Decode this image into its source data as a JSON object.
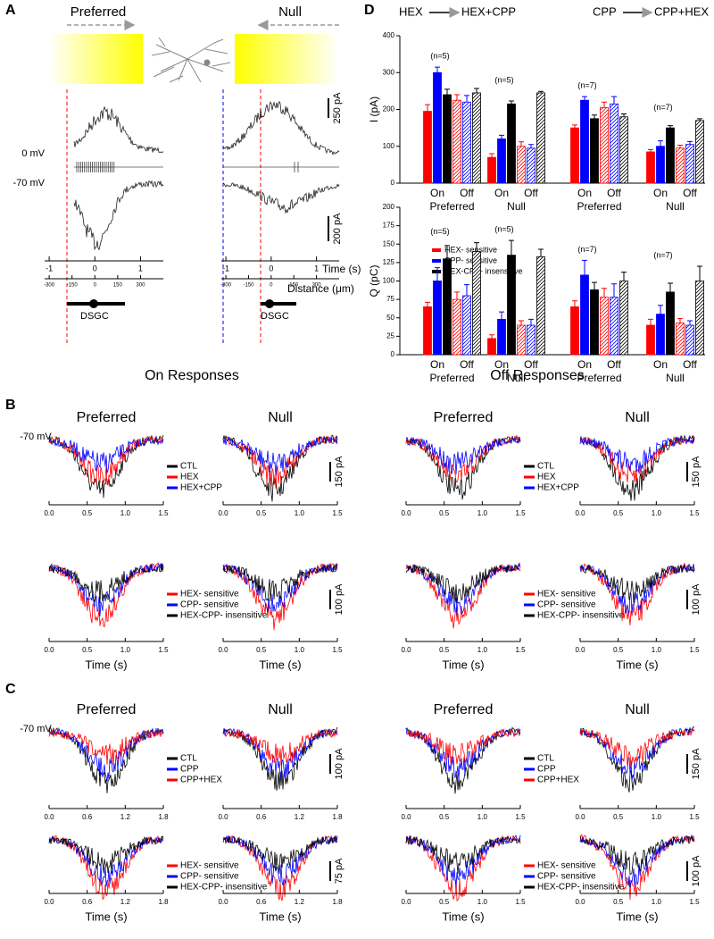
{
  "panel_A": {
    "label": "A",
    "preferred": "Preferred",
    "null": "Null",
    "voltage_top": "0 mV",
    "voltage_bottom": "-70 mV",
    "scale_top": "250 pA",
    "scale_bottom": "200 pA",
    "xlim": [
      -1.1,
      1.5
    ],
    "distance_lim": [
      -330,
      450
    ],
    "axes": [
      {
        "time_ticks": [
          -1,
          0,
          1
        ],
        "distance_ticks": [
          -300,
          -150,
          0,
          150,
          300
        ]
      },
      {
        "time_ticks": [
          -1,
          0,
          1
        ],
        "distance_ticks": [
          -300,
          -150,
          0,
          150,
          300
        ]
      }
    ],
    "time_label": "Time (s)",
    "distance_label": "Distance (μm)",
    "cells": [
      "DSGC",
      "DSGC"
    ]
  },
  "panel_D": {
    "label": "D",
    "headers": [
      {
        "from": "HEX",
        "to": "HEX+CPP"
      },
      {
        "from": "CPP",
        "to": "CPP+HEX"
      }
    ]
  },
  "panel_B": {
    "label": "B",
    "sections": [
      "On Responses",
      "Off Responses"
    ],
    "plots": [
      {
        "title": "Preferred",
        "ylabel": "-70 mV",
        "xlim": [
          0,
          1.5
        ],
        "xticks": [
          {
            "value": 0,
            "label": "0.0"
          },
          0.5,
          {
            "value": 1,
            "label": "1.0"
          },
          1.5
        ],
        "colors": [
          "#000000",
          "#ff0000",
          "#0000ff"
        ],
        "legend": [
          "CTL",
          "HEX",
          "HEX+CPP"
        ]
      },
      {
        "title": "Null",
        "xlim": [
          0,
          1.5
        ],
        "xticks": [
          {
            "value": 0,
            "label": "0.0"
          },
          0.5,
          {
            "value": 1,
            "label": "1.0"
          },
          1.5
        ],
        "colors": [
          "#000000",
          "#ff0000",
          "#0000ff"
        ],
        "scalebar": "150 pA"
      },
      {
        "title": "Preferred",
        "xlim": [
          0,
          1.5
        ],
        "xticks": [
          {
            "value": 0,
            "label": "0.0"
          },
          0.5,
          {
            "value": 1,
            "label": "1.0"
          },
          1.5
        ],
        "colors": [
          "#000000",
          "#ff0000",
          "#0000ff"
        ],
        "legend": [
          "CTL",
          "HEX",
          "HEX+CPP"
        ]
      },
      {
        "title": "Null",
        "xlim": [
          0,
          1.5
        ],
        "xticks": [
          {
            "value": 0,
            "label": "0.0"
          },
          0.5,
          {
            "value": 1,
            "label": "1.0"
          },
          1.5
        ],
        "colors": [
          "#000000",
          "#ff0000",
          "#0000ff"
        ],
        "scalebar": "150 pA"
      },
      {
        "xlabel": "Time (s)",
        "xlim": [
          0,
          1.5
        ],
        "xticks": [
          {
            "value": 0,
            "label": "0.0"
          },
          0.5,
          {
            "value": 1,
            "label": "1.0"
          },
          1.5
        ],
        "colors": [
          "#ff0000",
          "#0000ff",
          "#000000"
        ],
        "legend": [
          "HEX- sensitive",
          "CPP- sensitive",
          "HEX-CPP- insensitive"
        ]
      },
      {
        "xlabel": "Time (s)",
        "xlim": [
          0,
          1.5
        ],
        "xticks": [
          {
            "value": 0,
            "label": "0.0"
          },
          0.5,
          {
            "value": 1,
            "label": "1.0"
          },
          1.5
        ],
        "colors": [
          "#ff0000",
          "#0000ff",
          "#000000"
        ],
        "scalebar": "100 pA"
      },
      {
        "xlabel": "Time (s)",
        "xlim": [
          0,
          1.5
        ],
        "xticks": [
          {
            "value": 0,
            "label": "0.0"
          },
          0.5,
          {
            "value": 1,
            "label": "1.0"
          },
          1.5
        ],
        "colors": [
          "#ff0000",
          "#0000ff",
          "#000000"
        ],
        "legend": [
          "HEX- sensitive",
          "CPP- sensitive",
          "HEX-CPP- insensitive"
        ]
      },
      {
        "xlabel": "Time (s)",
        "xlim": [
          0,
          1.5
        ],
        "xticks": [
          {
            "value": 0,
            "label": "0.0"
          },
          0.5,
          {
            "value": 1,
            "label": "1.0"
          },
          1.5
        ],
        "colors": [
          "#ff0000",
          "#0000ff",
          "#000000"
        ],
        "scalebar": "100 pA"
      }
    ]
  },
  "panel_C": {
    "label": "C",
    "plots": [
      {
        "title": "Preferred",
        "ylabel": "-70 mV",
        "xlim": [
          0,
          1.8
        ],
        "xticks": [
          {
            "value": 0,
            "label": "0.0"
          },
          0.6,
          1.2,
          1.8
        ],
        "colors": [
          "#000000",
          "#0000ff",
          "#ff0000"
        ],
        "legend": [
          "CTL",
          "CPP",
          "CPP+HEX"
        ]
      },
      {
        "title": "Null",
        "xlim": [
          0,
          1.8
        ],
        "xticks": [
          {
            "value": 0,
            "label": "0.0"
          },
          0.6,
          1.2,
          1.8
        ],
        "colors": [
          "#000000",
          "#0000ff",
          "#ff0000"
        ],
        "scalebar": "100 pA"
      },
      {
        "title": "Preferred",
        "xlim": [
          0,
          1.5
        ],
        "xticks": [
          {
            "value": 0,
            "label": "0.0"
          },
          0.5,
          {
            "value": 1,
            "label": "1.0"
          },
          1.5
        ],
        "colors": [
          "#000000",
          "#0000ff",
          "#ff0000"
        ],
        "legend": [
          "CTL",
          "CPP",
          "CPP+HEX"
        ]
      },
      {
        "title": "Null",
        "xlim": [
          0,
          1.5
        ],
        "xticks": [
          {
            "value": 0,
            "label": "0.0"
          },
          0.5,
          {
            "value": 1,
            "label": "1.0"
          },
          1.5
        ],
        "colors": [
          "#000000",
          "#0000ff",
          "#ff0000"
        ],
        "scalebar": "150 pA"
      },
      {
        "xlabel": "Time (s)",
        "xlim": [
          0,
          1.8
        ],
        "xticks": [
          {
            "value": 0,
            "label": "0.0"
          },
          0.6,
          1.2,
          1.8
        ],
        "colors": [
          "#ff0000",
          "#0000ff",
          "#000000"
        ],
        "legend": [
          "HEX- sensitive",
          "CPP- sensitive",
          "HEX-CPP- insensitive"
        ]
      },
      {
        "xlabel": "Time (s)",
        "xlim": [
          0,
          1.8
        ],
        "xticks": [
          {
            "value": 0,
            "label": "0.0"
          },
          0.6,
          1.2,
          1.8
        ],
        "colors": [
          "#ff0000",
          "#0000ff",
          "#000000"
        ],
        "scalebar": "75 pA"
      },
      {
        "xlabel": "Time (s)",
        "xlim": [
          0,
          1.5
        ],
        "xticks": [
          {
            "value": 0,
            "label": "0.0"
          },
          0.5,
          {
            "value": 1,
            "label": "1.0"
          },
          1.5
        ],
        "colors": [
          "#ff0000",
          "#0000ff",
          "#000000"
        ],
        "legend": [
          "HEX- sensitive",
          "CPP- sensitive",
          "HEX-CPP- insensitive"
        ]
      },
      {
        "xlabel": "Time (s)",
        "xlim": [
          0,
          1.5
        ],
        "xticks": [
          {
            "value": 0,
            "label": "0.0"
          },
          0.5,
          {
            "value": 1,
            "label": "1.0"
          },
          1.5
        ],
        "colors": [
          "#ff0000",
          "#0000ff",
          "#000000"
        ],
        "scalebar": "100 pA"
      }
    ]
  },
  "chart_data": [
    {
      "type": "bar",
      "ylabel": "I (pA)",
      "ylim": [
        0,
        400
      ],
      "yticks": [
        0,
        100,
        200,
        300,
        400
      ],
      "categories": [
        "On",
        "Off",
        "On",
        "Off",
        "On",
        "Off",
        "On",
        "Off"
      ],
      "hatched": [
        false,
        true,
        false,
        true,
        false,
        true,
        false,
        true
      ],
      "groups": [
        "Preferred",
        "Null",
        "Preferred",
        "Null"
      ],
      "group_notes": [
        "(n=5)",
        "(n=5)",
        "(n=7)",
        "(n=7)"
      ],
      "series": [
        {
          "name": "HEX- sensitive",
          "color": "#ff0000",
          "values": [
            195,
            225,
            70,
            100,
            150,
            205,
            85,
            95
          ],
          "errors": [
            18,
            15,
            10,
            12,
            8,
            15,
            6,
            8
          ]
        },
        {
          "name": "CPP- sensitive",
          "color": "#0000ff",
          "values": [
            300,
            220,
            120,
            95,
            225,
            215,
            100,
            105
          ],
          "errors": [
            15,
            18,
            10,
            10,
            10,
            20,
            15,
            8
          ]
        },
        {
          "name": "HEX-CPP- insensitive",
          "color": "#000000",
          "values": [
            240,
            245,
            215,
            245,
            175,
            180,
            150,
            170
          ],
          "errors": [
            15,
            12,
            8,
            4,
            10,
            8,
            6,
            5
          ]
        }
      ]
    },
    {
      "type": "bar",
      "ylabel": "Q (pC)",
      "ylim": [
        0,
        200
      ],
      "yticks": [
        0,
        25,
        50,
        75,
        100,
        125,
        150,
        175,
        200
      ],
      "categories": [
        "On",
        "Off",
        "On",
        "Off",
        "On",
        "Off",
        "On",
        "Off"
      ],
      "hatched": [
        false,
        true,
        false,
        true,
        false,
        true,
        false,
        true
      ],
      "groups": [
        "Preferred",
        "Null",
        "Preferred",
        "Null"
      ],
      "group_notes": [
        "(n=5)",
        "(n=5)",
        "(n=7)",
        "(n=7)"
      ],
      "series": [
        {
          "color": "#ff0000",
          "values": [
            65,
            75,
            22,
            40,
            65,
            78,
            40,
            43
          ],
          "errors": [
            6,
            10,
            5,
            6,
            8,
            12,
            8,
            6
          ]
        },
        {
          "color": "#0000ff",
          "values": [
            100,
            80,
            48,
            40,
            108,
            78,
            55,
            40
          ],
          "errors": [
            18,
            15,
            10,
            8,
            20,
            18,
            12,
            6
          ]
        },
        {
          "color": "#000000",
          "values": [
            130,
            140,
            135,
            133,
            88,
            100,
            85,
            100
          ],
          "errors": [
            18,
            12,
            20,
            10,
            10,
            12,
            12,
            20
          ]
        }
      ]
    }
  ]
}
